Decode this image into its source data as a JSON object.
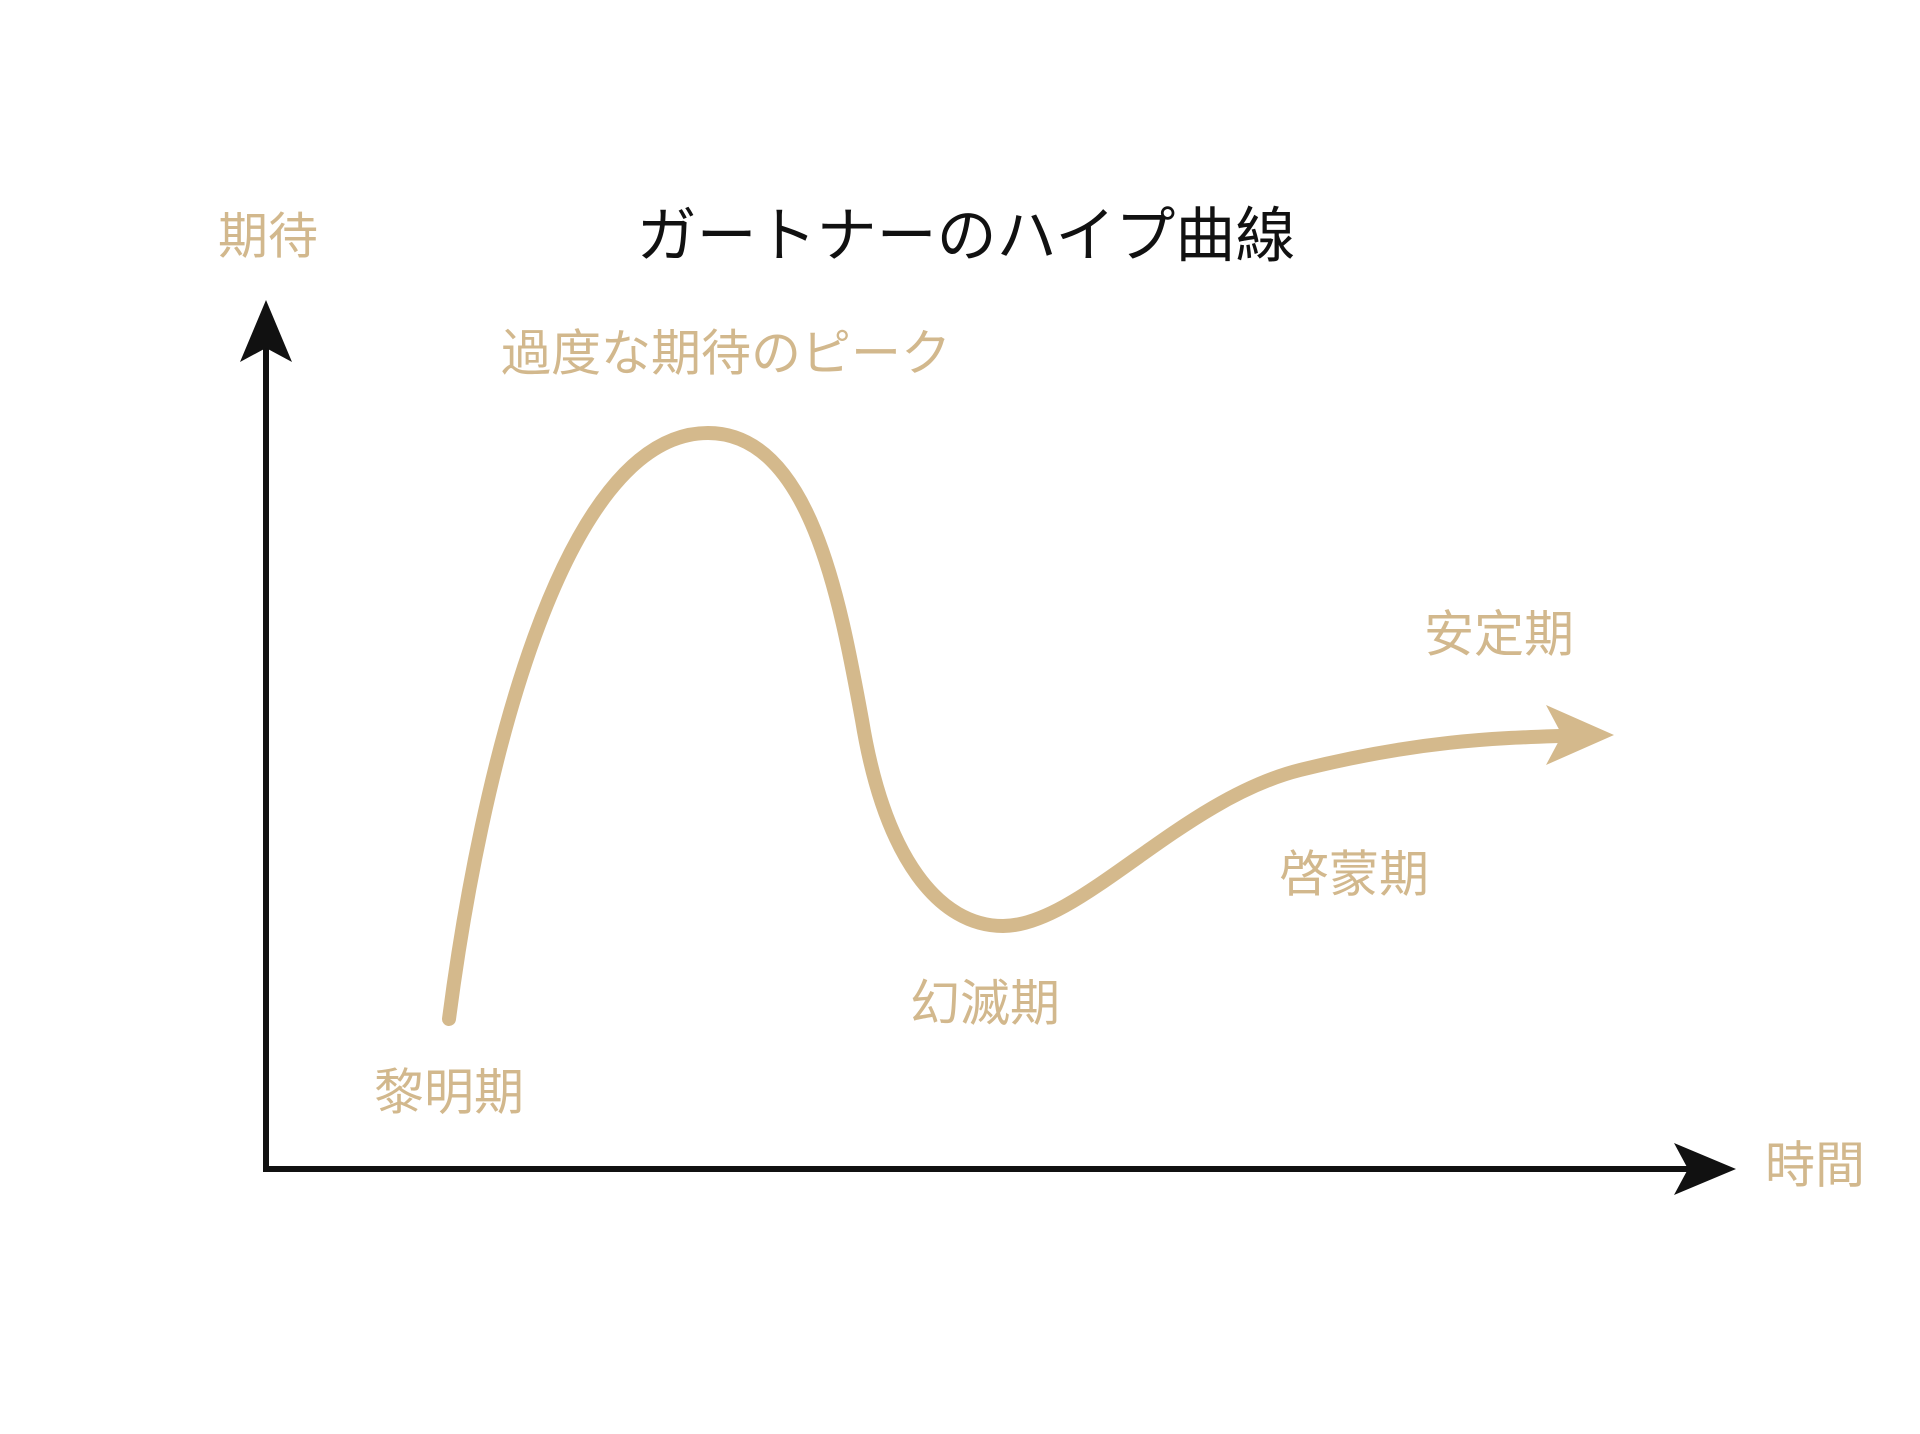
{
  "title": "ガートナーのハイプ曲線",
  "axes": {
    "y_label": "期待",
    "x_label": "時間"
  },
  "phases": [
    "過度な期待のピーク",
    "黎明期",
    "幻滅期",
    "啓蒙期",
    "安定期"
  ]
}
